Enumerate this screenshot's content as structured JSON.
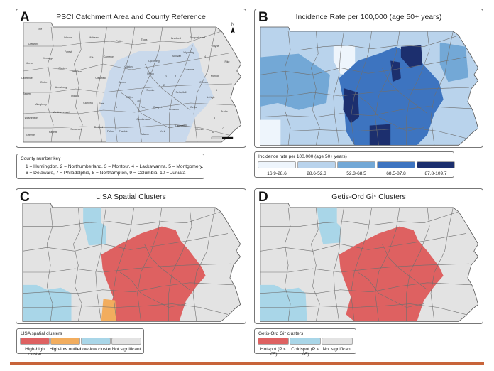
{
  "panels": {
    "a": {
      "letter": "A",
      "title": "PSCI  Catchment Area and County Reference"
    },
    "b": {
      "letter": "B",
      "title": "Incidence Rate per 100,000 (age 50+ years)"
    },
    "c": {
      "letter": "C",
      "title": "LISA Spatial Clusters"
    },
    "d": {
      "letter": "D",
      "title": "Getis-Ord Gi* Clusters"
    }
  },
  "north_arrow": "N",
  "county_labels": [
    "Erie",
    "Warren",
    "McKean",
    "Potter",
    "Tioga",
    "Bradford",
    "Susquehanna",
    "Wayne",
    "Crawford",
    "Forest",
    "Venango",
    "Elk",
    "Cameron",
    "Mercer",
    "Clarion",
    "Jefferson",
    "Clearfield",
    "Lawrence",
    "Butler",
    "Armstrong",
    "Beaver",
    "Indiana",
    "Allegheny",
    "Cambria",
    "Blair",
    "Westmoreland",
    "Washington",
    "Somerset",
    "Bedford",
    "Fayette",
    "Greene",
    "Fulton",
    "Franklin",
    "Clinton",
    "Centre",
    "Lycoming",
    "Sullivan",
    "Wyoming",
    "4",
    "Pike",
    "Union",
    "3",
    "9",
    "Luzerne",
    "Monroe",
    "Carbon",
    "2",
    "Snyder",
    "5",
    "Schuylkill",
    "Lehigh",
    "Mifflin",
    "10",
    "Perry",
    "Dauphin",
    "Lebanon",
    "Berks",
    "Bucks",
    "Cumberland",
    "8",
    "Lancaster",
    "Chester",
    "6",
    "7",
    "Adams",
    "York",
    "1"
  ],
  "county_key": {
    "title": "County number key",
    "lines": [
      "1 = Huntingdon, 2 = Northumberland, 3 = Montour, 4 = Lackawanna, 5 = Montgomery,",
      "6 = Delaware, 7 = Philadelphia, 8 = Northampton, 9 = Columbia, 10 = Juniata"
    ]
  },
  "incidence_legend": {
    "title": "Incidence rate per 100,000 (age 50+ years)",
    "classes": [
      {
        "label": "16.9-28.6",
        "color": "#eef5fc"
      },
      {
        "label": "28.6-52.3",
        "color": "#b9d3ec"
      },
      {
        "label": "52.3-68.5",
        "color": "#73a8d6"
      },
      {
        "label": "68.5-87.8",
        "color": "#3d74c0"
      },
      {
        "label": "87.8-109.7",
        "color": "#1c2f6e"
      }
    ]
  },
  "lisa_legend": {
    "title": "LISA spatial clusters",
    "classes": [
      {
        "label": "High-high cluster",
        "color": "#de6161"
      },
      {
        "label": "High-low outlier",
        "color": "#f2ad5e"
      },
      {
        "label": "Low-low cluster",
        "color": "#a9d6e8"
      },
      {
        "label": "Not significant",
        "color": "#e3e3e3"
      }
    ]
  },
  "gi_legend": {
    "title": "Getis-Ord Gi* clusters",
    "classes": [
      {
        "label": "Hotspot (P < .05)",
        "color": "#de6161"
      },
      {
        "label": "Coldspot (P < .05)",
        "color": "#a9d6e8"
      },
      {
        "label": "Not significant",
        "color": "#e3e3e3"
      }
    ]
  },
  "catchment_color": "#c9d9ec",
  "base_county_color": "#e4e4e4",
  "rule_color": "#c8643a"
}
